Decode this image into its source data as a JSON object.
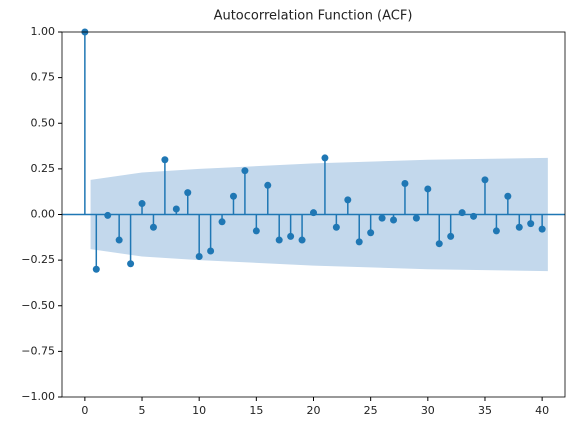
{
  "chart_data": {
    "type": "stem",
    "title": "Autocorrelation Function (ACF)",
    "x": [
      0,
      1,
      2,
      3,
      4,
      5,
      6,
      7,
      8,
      9,
      10,
      11,
      12,
      13,
      14,
      15,
      16,
      17,
      18,
      19,
      20,
      21,
      22,
      23,
      24,
      25,
      26,
      27,
      28,
      29,
      30,
      31,
      32,
      33,
      34,
      35,
      36,
      37,
      38,
      39,
      40
    ],
    "values": [
      1.0,
      -0.3,
      -0.005,
      -0.14,
      -0.27,
      0.06,
      -0.07,
      0.3,
      0.03,
      0.12,
      -0.23,
      -0.2,
      -0.04,
      0.1,
      0.24,
      -0.09,
      0.16,
      -0.14,
      -0.12,
      -0.14,
      0.01,
      0.31,
      -0.07,
      0.08,
      -0.15,
      -0.1,
      -0.02,
      -0.03,
      0.17,
      -0.02,
      0.14,
      -0.16,
      -0.12,
      0.01,
      -0.01,
      0.19,
      -0.09,
      0.1,
      -0.07,
      -0.05,
      -0.08
    ],
    "color": "#1f77b4",
    "band": {
      "x": [
        0.5,
        5,
        10,
        20,
        30,
        40.5
      ],
      "upper": [
        0.19,
        0.23,
        0.25,
        0.28,
        0.3,
        0.31
      ],
      "lower": [
        -0.19,
        -0.23,
        -0.25,
        -0.28,
        -0.3,
        -0.31
      ],
      "color": "#c3d8ec"
    },
    "xlim": [
      -2,
      42
    ],
    "ylim": [
      -1,
      1
    ],
    "xticks": [
      0,
      5,
      10,
      15,
      20,
      25,
      30,
      35,
      40
    ],
    "yticks": [
      {
        "value": -1,
        "label": "−1.00"
      },
      {
        "value": -0.75,
        "label": "−0.75"
      },
      {
        "value": -0.5,
        "label": "−0.50"
      },
      {
        "value": -0.25,
        "label": "−0.25"
      },
      {
        "value": 0,
        "label": "0.00"
      },
      {
        "value": 0.25,
        "label": "0.25"
      },
      {
        "value": 0.5,
        "label": "0.50"
      },
      {
        "value": 0.75,
        "label": "0.75"
      },
      {
        "value": 1,
        "label": "1.00"
      }
    ],
    "grid": false
  }
}
